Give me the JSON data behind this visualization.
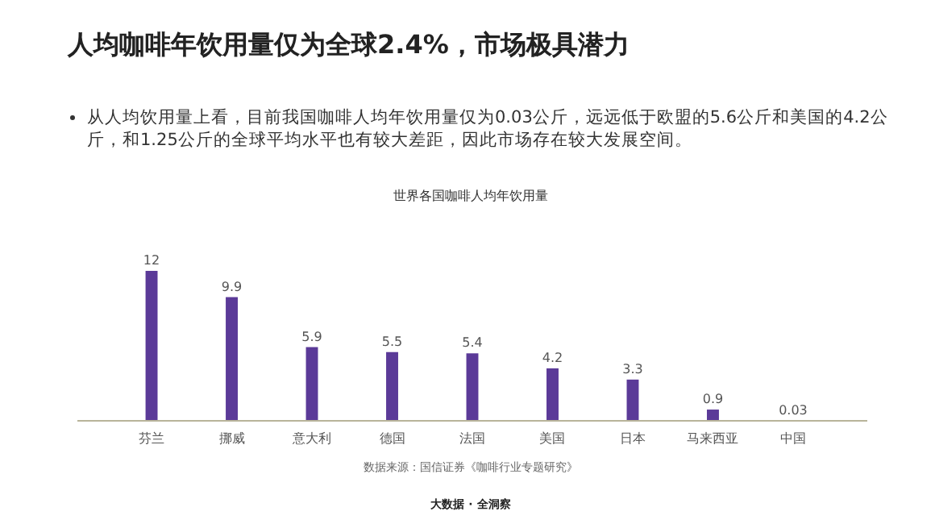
{
  "chart_data": {
    "type": "bar",
    "title": "人均咖啡年饮用量仅为全球2.4%，市场极具潜力",
    "subtitle": "从人均饮用量上看，目前我国咖啡人均年饮用量仅为0.03公斤，远远低于欧盟的5.6公斤和美国的4.2公斤，和1.25公斤的全球平均水平也有较大差距，因此市场存在较大发展空间。",
    "categories": [
      "芬兰",
      "挪威",
      "意大利",
      "德国",
      "法国",
      "美国",
      "日本",
      "马来西亚",
      "中国"
    ],
    "values": [
      12,
      9.9,
      5.9,
      5.5,
      5.4,
      4.2,
      3.3,
      0.9,
      0.03
    ],
    "color": "#5b3a98",
    "data_labels": true,
    "annotations": [
      "世界各国咖啡人均年饮用量",
      "数据来源：国信证券《咖啡行业专题研究》",
      "大数据 · 全洞察"
    ]
  }
}
